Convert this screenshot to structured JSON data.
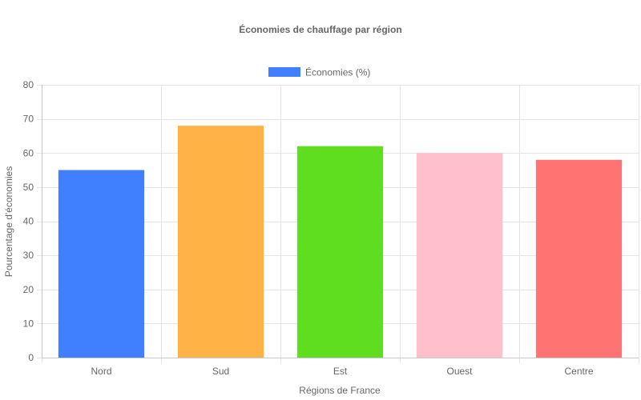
{
  "chart_data": {
    "type": "bar",
    "title": "Économies de chauffage par région",
    "xlabel": "Régions de France",
    "ylabel": "Pourcentage d'économies",
    "categories": [
      "Nord",
      "Sud",
      "Est",
      "Ouest",
      "Centre"
    ],
    "series": [
      {
        "name": "Économies (%)",
        "values": [
          55,
          68,
          62,
          60,
          58
        ],
        "colors": [
          "#4080ff",
          "#ffb347",
          "#5ede1e",
          "#ffc0cb",
          "#ff7373"
        ]
      }
    ],
    "legend_color": "#4080ff",
    "legend_position": "top",
    "ylim": [
      0,
      80
    ],
    "yticks": [
      0,
      10,
      20,
      30,
      40,
      50,
      60,
      70,
      80
    ],
    "grid": true
  }
}
